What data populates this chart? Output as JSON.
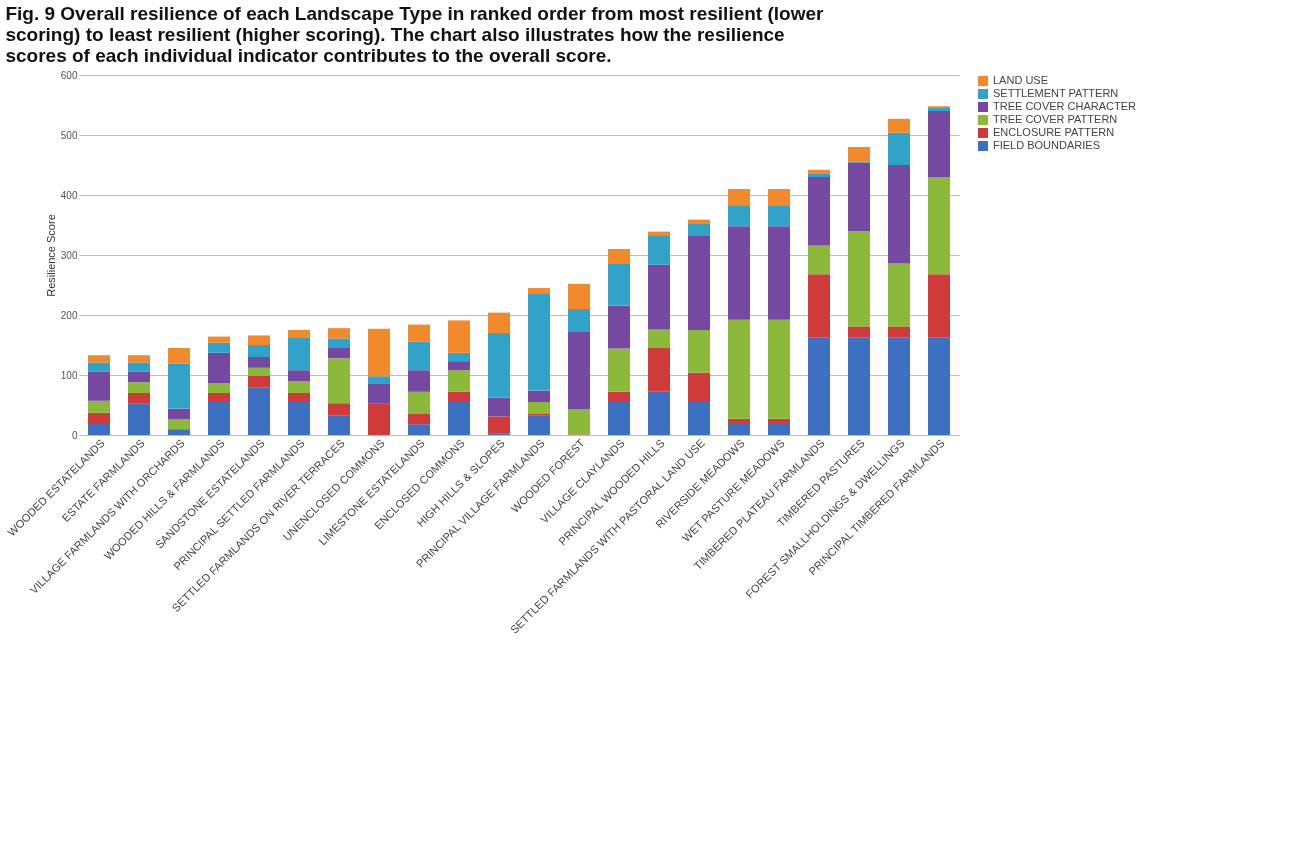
{
  "chart_data": {
    "type": "bar",
    "stacked": true,
    "title": "Fig. 9  Overall resilience of each Landscape Type in ranked order from most resilient (lower scoring) to least resilient (higher scoring). The chart also illustrates how the resilience scores of each individual indicator contributes to the overall score.",
    "ylabel": "Resilience Score",
    "categories": [
      "WOODED ESTATELANDS",
      "ESTATE FARMLANDS",
      "VILLAGE FARMLANDS WITH ORCHARDS",
      "WOODED HILLS & FARMLANDS",
      "SANDSTONE ESTATELANDS",
      "PRINCIPAL SETTLED FARMLANDS",
      "SETTLED FARMLANDS ON RIVER TERRACES",
      "UNENCLOSED COMMONS",
      "LIMESTONE ESTATELANDS",
      "ENCLOSED COMMONS",
      "HIGH HILLS & SLOPES",
      "PRINCIPAL VILLAGE FARMLANDS",
      "WOODED FOREST",
      "VILLAGE CLAYLANDS",
      "PRINCIPAL WOODED HILLS",
      "SETTLED FARMLANDS WITH PASTORAL LAND USE",
      "RIVERSIDE MEADOWS",
      "WET PASTURE MEADOWS",
      "TIMBERED PLATEAU FARMLANDS",
      "TIMBERED PASTURES",
      "FOREST SMALLHOLDINGS & DWELLINGS",
      "PRINCIPAL TIMBERED FARMLANDS"
    ],
    "series": [
      {
        "name": "FIELD BOUNDARIES",
        "color": "#3f6fc0",
        "values": [
          20,
          53,
          9,
          55,
          79,
          55,
          33,
          null,
          18,
          55,
          2,
          33,
          null,
          55,
          72,
          55,
          20,
          20,
          163,
          163,
          163,
          163
        ]
      },
      {
        "name": "ENCLOSURE PATTERN",
        "color": "#cf3a3a",
        "values": [
          17,
          17,
          1,
          15,
          20,
          15,
          20,
          52,
          17,
          17,
          29,
          2,
          1,
          17,
          73,
          49,
          7,
          7,
          105,
          18,
          18,
          105
        ]
      },
      {
        "name": "TREE COVER PATTERN",
        "color": "#8cb83c",
        "values": [
          20,
          18,
          16,
          16,
          13,
          20,
          75,
          0,
          37,
          36,
          0,
          20,
          42,
          72,
          31,
          71,
          165,
          165,
          48,
          159,
          105,
          162
        ]
      },
      {
        "name": "TREE COVER CHARACTER",
        "color": "#7649a0",
        "values": [
          49,
          18,
          18,
          51,
          18,
          18,
          17,
          33,
          36,
          15,
          31,
          19,
          130,
          72,
          108,
          158,
          156,
          156,
          114,
          114,
          164,
          110
        ]
      },
      {
        "name": "SETTLEMENT PATTERN",
        "color": "#33a2c8",
        "values": [
          15,
          15,
          75,
          17,
          20,
          55,
          16,
          13,
          48,
          14,
          108,
          161,
          37,
          69,
          49,
          20,
          35,
          35,
          5,
          2,
          54,
          5
        ]
      },
      {
        "name": "LAND USE",
        "color": "#f08a2c",
        "values": [
          12,
          12,
          26,
          10,
          16,
          12,
          17,
          79,
          28,
          54,
          34,
          10,
          42,
          25,
          6,
          6,
          27,
          27,
          7,
          24,
          23,
          3
        ]
      }
    ],
    "ylim": [
      0,
      600
    ],
    "yticks": [
      0,
      100,
      200,
      300,
      400,
      500,
      600
    ],
    "grid": "y",
    "legend": "right"
  }
}
